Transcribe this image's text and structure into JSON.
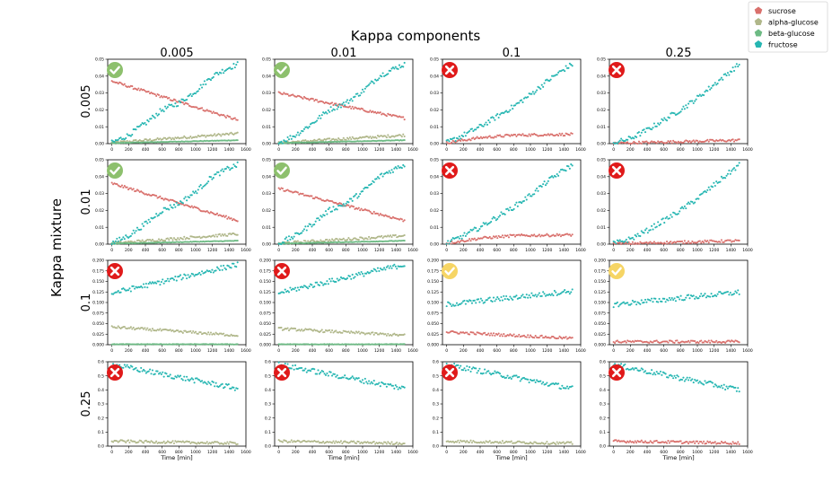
{
  "figure": {
    "title": "Kappa components",
    "row_axis_label": "Kappa mixture",
    "column_labels": [
      "0.005",
      "0.01",
      "0.1",
      "0.25"
    ],
    "row_labels": [
      "0.005",
      "0.01",
      "0.1",
      "0.25"
    ],
    "x_axis_label": "Time [min]",
    "legend_position": "top-right"
  },
  "legend": [
    {
      "label": "sucrose",
      "color": "#d9706c"
    },
    {
      "label": "alpha-glucose",
      "color": "#b0b78a"
    },
    {
      "label": "beta-glucose",
      "color": "#6dba84"
    },
    {
      "label": "fructose",
      "color": "#26b6b2"
    }
  ],
  "status_colors": {
    "check": "#8dc06d",
    "warning": "#f6d565",
    "cross": "#e01a1a"
  },
  "chart_data": {
    "type": "scatter",
    "layout": "4x4 grid (rows: Kappa mixture, columns: Kappa components)",
    "grid": false,
    "xlim": [
      -50,
      1600
    ],
    "x_ticks": [
      0,
      200,
      400,
      600,
      800,
      1000,
      1200,
      1400,
      1600
    ],
    "x_tick_labels": [
      "0",
      "200",
      "400",
      "600",
      "800",
      "1000",
      "1200",
      "1400",
      "1600"
    ],
    "row_ylims": [
      [
        0,
        0.05
      ],
      [
        0,
        0.05
      ],
      [
        0,
        0.2
      ],
      [
        0,
        0.6
      ]
    ],
    "row_yticks": [
      [
        0.0,
        0.01,
        0.02,
        0.03,
        0.04,
        0.05
      ],
      [
        0.0,
        0.01,
        0.02,
        0.03,
        0.04,
        0.05
      ],
      [
        0.0,
        0.025,
        0.05,
        0.075,
        0.1,
        0.125,
        0.15,
        0.175,
        0.2
      ],
      [
        0.0,
        0.1,
        0.2,
        0.3,
        0.4,
        0.5,
        0.6
      ]
    ],
    "row_ytick_labels": [
      [
        "0.00",
        "0.01",
        "0.02",
        "0.03",
        "0.04",
        "0.05"
      ],
      [
        "0.00",
        "0.01",
        "0.02",
        "0.03",
        "0.04",
        "0.05"
      ],
      [
        "0.000",
        "0.025",
        "0.050",
        "0.075",
        "0.100",
        "0.125",
        "0.150",
        "0.175",
        "0.200"
      ],
      [
        "0.0",
        "0.1",
        "0.2",
        "0.3",
        "0.4",
        "0.5",
        "0.6"
      ]
    ],
    "panels": [
      [
        {
          "status": "check",
          "series": {
            "sucrose": {
              "x": [
                0,
                1500
              ],
              "y": [
                0.037,
                0.014
              ]
            },
            "alpha-glucose": {
              "x": [
                0,
                1500
              ],
              "y": [
                0.0005,
                0.006
              ]
            },
            "beta-glucose": {
              "x": [
                0,
                1500
              ],
              "y": [
                0.0003,
                0.002
              ]
            },
            "fructose": {
              "x": [
                0,
                200,
                400,
                600,
                800,
                1000,
                1200,
                1400,
                1500
              ],
              "y": [
                0.0005,
                0.005,
                0.012,
                0.02,
                0.024,
                0.031,
                0.04,
                0.045,
                0.047
              ]
            }
          }
        },
        {
          "status": "check",
          "series": {
            "sucrose": {
              "x": [
                0,
                1500
              ],
              "y": [
                0.03,
                0.015
              ]
            },
            "alpha-glucose": {
              "x": [
                0,
                1500
              ],
              "y": [
                0.0005,
                0.005
              ]
            },
            "beta-glucose": {
              "x": [
                0,
                1500
              ],
              "y": [
                0.0003,
                0.002
              ]
            },
            "fructose": {
              "x": [
                0,
                200,
                400,
                600,
                800,
                1000,
                1200,
                1400,
                1500
              ],
              "y": [
                0.0005,
                0.005,
                0.012,
                0.02,
                0.024,
                0.031,
                0.04,
                0.045,
                0.047
              ]
            }
          }
        },
        {
          "status": "cross",
          "series": {
            "sucrose": {
              "x": [
                0,
                400,
                800,
                1500
              ],
              "y": [
                0.0005,
                0.0035,
                0.005,
                0.0055
              ]
            },
            "fructose": {
              "x": [
                0,
                200,
                400,
                600,
                800,
                1000,
                1200,
                1400,
                1500
              ],
              "y": [
                0.0005,
                0.005,
                0.01,
                0.016,
                0.022,
                0.029,
                0.037,
                0.044,
                0.047
              ]
            }
          }
        },
        {
          "status": "cross",
          "series": {
            "sucrose": {
              "x": [
                0,
                1500
              ],
              "y": [
                0.0002,
                0.002
              ]
            },
            "fructose": {
              "x": [
                0,
                200,
                400,
                600,
                800,
                1000,
                1200,
                1400,
                1500
              ],
              "y": [
                0.0003,
                0.003,
                0.008,
                0.014,
                0.02,
                0.027,
                0.035,
                0.043,
                0.047
              ]
            }
          }
        }
      ],
      [
        {
          "status": "check",
          "series": {
            "sucrose": {
              "x": [
                0,
                1500
              ],
              "y": [
                0.036,
                0.014
              ]
            },
            "alpha-glucose": {
              "x": [
                0,
                1500
              ],
              "y": [
                0.0005,
                0.006
              ]
            },
            "beta-glucose": {
              "x": [
                0,
                1500
              ],
              "y": [
                0.0003,
                0.002
              ]
            },
            "fructose": {
              "x": [
                0,
                200,
                400,
                600,
                800,
                1000,
                1200,
                1400,
                1500
              ],
              "y": [
                0.0005,
                0.005,
                0.012,
                0.02,
                0.024,
                0.031,
                0.04,
                0.045,
                0.047
              ]
            }
          }
        },
        {
          "status": "check",
          "series": {
            "sucrose": {
              "x": [
                0,
                1500
              ],
              "y": [
                0.033,
                0.014
              ]
            },
            "alpha-glucose": {
              "x": [
                0,
                1500
              ],
              "y": [
                0.0005,
                0.005
              ]
            },
            "beta-glucose": {
              "x": [
                0,
                1500
              ],
              "y": [
                0.0003,
                0.002
              ]
            },
            "fructose": {
              "x": [
                0,
                200,
                400,
                600,
                800,
                1000,
                1200,
                1400,
                1500
              ],
              "y": [
                0.0005,
                0.005,
                0.012,
                0.02,
                0.024,
                0.031,
                0.04,
                0.045,
                0.047
              ]
            }
          }
        },
        {
          "status": "cross",
          "series": {
            "sucrose": {
              "x": [
                0,
                400,
                800,
                1500
              ],
              "y": [
                0.0005,
                0.0035,
                0.005,
                0.0055
              ]
            },
            "fructose": {
              "x": [
                0,
                200,
                400,
                600,
                800,
                1000,
                1200,
                1400,
                1500
              ],
              "y": [
                0.0005,
                0.005,
                0.01,
                0.016,
                0.022,
                0.029,
                0.037,
                0.044,
                0.047
              ]
            }
          }
        },
        {
          "status": "cross",
          "series": {
            "sucrose": {
              "x": [
                0,
                1500
              ],
              "y": [
                0.0002,
                0.002
              ]
            },
            "fructose": {
              "x": [
                0,
                200,
                400,
                600,
                800,
                1000,
                1200,
                1400,
                1500
              ],
              "y": [
                0.0003,
                0.003,
                0.008,
                0.014,
                0.02,
                0.027,
                0.035,
                0.043,
                0.047
              ]
            }
          }
        }
      ],
      [
        {
          "status": "cross",
          "series": {
            "alpha-glucose": {
              "x": [
                0,
                1500
              ],
              "y": [
                0.042,
                0.022
              ]
            },
            "beta-glucose": {
              "x": [
                0,
                1500
              ],
              "y": [
                0.001,
                0.001
              ]
            },
            "fructose": {
              "x": [
                0,
                1500
              ],
              "y": [
                0.122,
                0.19
              ]
            }
          }
        },
        {
          "status": "cross",
          "series": {
            "alpha-glucose": {
              "x": [
                0,
                1500
              ],
              "y": [
                0.038,
                0.022
              ]
            },
            "beta-glucose": {
              "x": [
                0,
                1500
              ],
              "y": [
                0.001,
                0.001
              ]
            },
            "fructose": {
              "x": [
                0,
                1500
              ],
              "y": [
                0.123,
                0.19
              ]
            }
          }
        },
        {
          "status": "warning",
          "series": {
            "sucrose": {
              "x": [
                0,
                1500
              ],
              "y": [
                0.03,
                0.015
              ]
            },
            "fructose": {
              "x": [
                0,
                1500
              ],
              "y": [
                0.095,
                0.127
              ]
            }
          }
        },
        {
          "status": "warning",
          "series": {
            "sucrose": {
              "x": [
                0,
                1500
              ],
              "y": [
                0.007,
                0.007
              ]
            },
            "fructose": {
              "x": [
                0,
                1500
              ],
              "y": [
                0.095,
                0.124
              ]
            }
          }
        }
      ],
      [
        {
          "status": "cross",
          "series": {
            "alpha-glucose": {
              "x": [
                0,
                1500
              ],
              "y": [
                0.035,
                0.02
              ]
            },
            "fructose": {
              "x": [
                0,
                1500
              ],
              "y": [
                0.58,
                0.41
              ]
            }
          }
        },
        {
          "status": "cross",
          "series": {
            "alpha-glucose": {
              "x": [
                0,
                1500
              ],
              "y": [
                0.035,
                0.02
              ]
            },
            "fructose": {
              "x": [
                0,
                1500
              ],
              "y": [
                0.58,
                0.41
              ]
            }
          }
        },
        {
          "status": "cross",
          "series": {
            "alpha-glucose": {
              "x": [
                0,
                1500
              ],
              "y": [
                0.035,
                0.02
              ]
            },
            "fructose": {
              "x": [
                0,
                1500
              ],
              "y": [
                0.58,
                0.41
              ]
            }
          }
        },
        {
          "status": "cross",
          "series": {
            "sucrose": {
              "x": [
                0,
                1500
              ],
              "y": [
                0.035,
                0.022
              ]
            },
            "fructose": {
              "x": [
                0,
                1500
              ],
              "y": [
                0.58,
                0.4
              ]
            }
          }
        }
      ]
    ]
  }
}
